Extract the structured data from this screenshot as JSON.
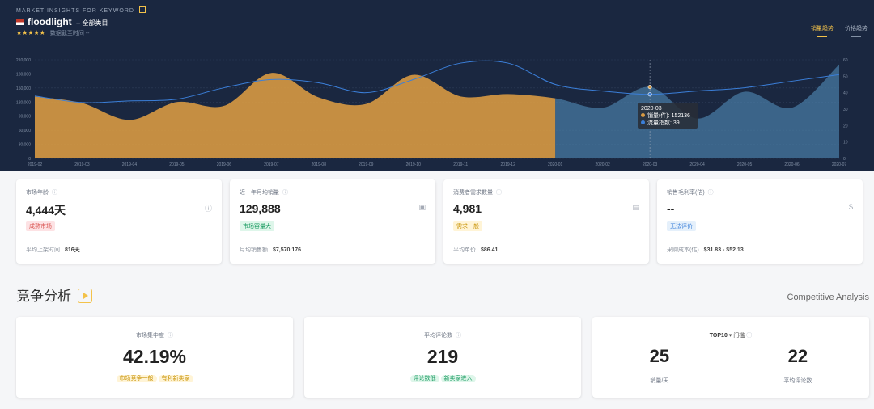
{
  "header": {
    "kicker": "MARKET INSIGHTS FOR KEYWORD",
    "keyword": "floodlight",
    "scope": "-- 全部类目",
    "stars": "★★★★★",
    "meta": "数据截至时间 --"
  },
  "tabs": [
    {
      "label": "销量趋势",
      "active": true
    },
    {
      "label": "价格趋势",
      "active": false
    }
  ],
  "chart_data": {
    "type": "area",
    "x": [
      "2019-02",
      "2019-03",
      "2019-04",
      "2019-05",
      "2019-06",
      "2019-07",
      "2019-08",
      "2019-09",
      "2019-10",
      "2019-11",
      "2019-12",
      "2020-01",
      "2020-02",
      "2020-03",
      "2020-04",
      "2020-05",
      "2020-06",
      "2020-07"
    ],
    "left_ticks": [
      "0",
      "30,000",
      "60,000",
      "90,000",
      "120,000",
      "150,000",
      "180,000",
      "210,000"
    ],
    "right_ticks": [
      "0",
      "10",
      "20",
      "30",
      "40",
      "50",
      "60"
    ],
    "ylim": [
      0,
      210000
    ],
    "y2lim": [
      0,
      60
    ],
    "series": [
      {
        "name": "销量(件)",
        "values": [
          132000,
          118000,
          82000,
          120000,
          112000,
          182000,
          130000,
          116000,
          178000,
          132000,
          137000,
          128000,
          108000,
          152136,
          85000,
          142000,
          108000,
          200000
        ],
        "color": "#d89a43"
      },
      {
        "name": "流量指数",
        "values": [
          38,
          34,
          35,
          36,
          43,
          48,
          46,
          40,
          48,
          58,
          58,
          45,
          41,
          39,
          41,
          43,
          47,
          51
        ],
        "color": "#3b7fd9"
      }
    ]
  },
  "tooltip": {
    "date": "2020-03",
    "sales_label": "销量(件)",
    "sales_value": "152136",
    "traffic_label": "流量指数",
    "traffic_value": "39"
  },
  "cards": [
    {
      "label": "市场年龄",
      "value": "4,444天",
      "icon": "ⓘ",
      "badge": "成熟市场",
      "badge_bg": "#fde2e4",
      "badge_color": "#d9534f",
      "foot_label": "平均上架时间",
      "foot_value": "816天"
    },
    {
      "label": "近一年月均销量",
      "value": "129,888",
      "icon": "▣",
      "badge": "市场容量大",
      "badge_bg": "#def6ea",
      "badge_color": "#1a9b61",
      "foot_label": "月均销售额",
      "foot_value": "$7,570,176"
    },
    {
      "label": "消费者需求数量",
      "value": "4,981",
      "icon": "▤",
      "badge": "需求一般",
      "badge_bg": "#fff4d6",
      "badge_color": "#c79000",
      "foot_label": "平均单价",
      "foot_value": "$86.41"
    },
    {
      "label": "销售毛利率(估)",
      "value": "--",
      "icon": "$",
      "badge": "无法评价",
      "badge_bg": "#e5f0fb",
      "badge_color": "#3b7fd9",
      "foot_label": "采购成本(估)",
      "foot_value": "$31.83 - $52.13"
    }
  ],
  "competition": {
    "title": "竞争分析",
    "subtitle": "Competitive Analysis",
    "share": {
      "label": "市场集中度",
      "value": "42.19%",
      "tags": [
        "市场竞争一般",
        "有利新卖家"
      ]
    },
    "ratings": {
      "label": "平均评论数",
      "value": "219",
      "tags": [
        "评论数低",
        "新卖家进入"
      ]
    },
    "top10": {
      "prefix": "TOP10",
      "suffix": "门槛",
      "left_value": "25",
      "left_label": "销量/天",
      "right_value": "22",
      "right_label": "平均评论数"
    }
  }
}
